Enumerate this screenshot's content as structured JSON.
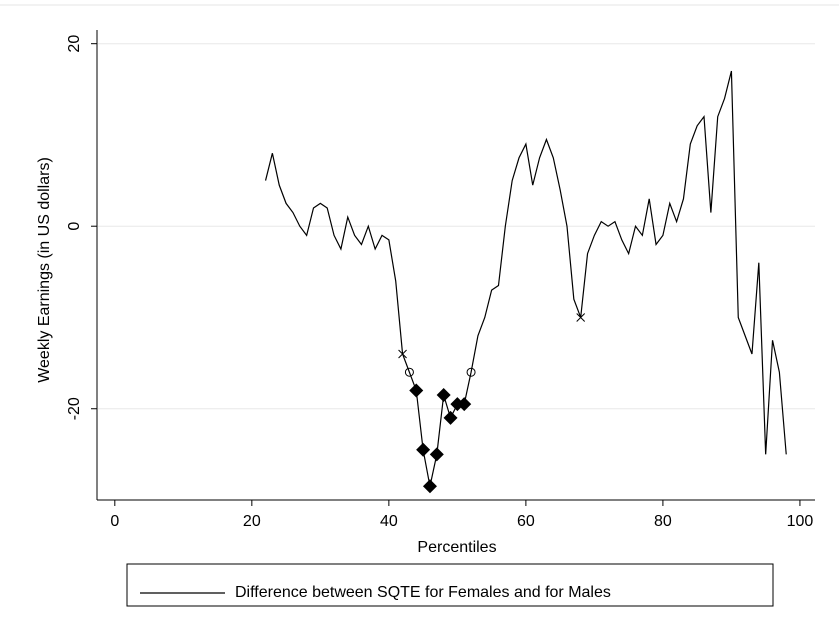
{
  "chart_data": {
    "type": "line",
    "xlabel": "Percentiles",
    "ylabel": "Weekly Earnings (in US dollars)",
    "xlim": [
      -2.6,
      102.2
    ],
    "ylim": [
      -30,
      21.5
    ],
    "xticks": [
      0,
      20,
      40,
      60,
      80,
      100
    ],
    "yticks": [
      -20,
      0,
      20
    ],
    "grid": true,
    "legend": "bottom",
    "x": [
      22,
      23,
      24,
      25,
      26,
      27,
      28,
      29,
      30,
      31,
      32,
      33,
      34,
      35,
      36,
      37,
      38,
      39,
      40,
      41,
      42,
      43,
      44,
      45,
      46,
      47,
      48,
      49,
      50,
      51,
      52,
      53,
      54,
      55,
      56,
      57,
      58,
      59,
      60,
      61,
      62,
      63,
      64,
      65,
      66,
      67,
      68,
      69,
      70,
      71,
      72,
      73,
      74,
      75,
      76,
      77,
      78,
      79,
      80,
      81,
      82,
      83,
      84,
      85,
      86,
      87,
      88,
      89,
      90,
      91,
      92,
      93,
      94,
      95,
      96,
      97,
      98
    ],
    "series": [
      {
        "name": "Difference between SQTE for Females and for Males",
        "color": "#000000",
        "values": [
          5,
          8,
          4.5,
          2.5,
          1.5,
          0,
          -1,
          2,
          2.5,
          2,
          -1,
          -2.5,
          1,
          -1,
          -2,
          0,
          -2.5,
          -1,
          -1.5,
          -6,
          -14,
          -16,
          -18,
          -24.5,
          -28.5,
          -25,
          -18.5,
          -21,
          -19.5,
          -19.5,
          -16,
          -12,
          -10,
          -7,
          -6.5,
          0,
          5,
          7.5,
          9,
          4.5,
          7.5,
          9.5,
          7.5,
          4,
          0,
          -8,
          -10,
          -3,
          -1,
          0.5,
          0,
          0.5,
          -1.5,
          -3,
          0,
          -1,
          3,
          -2,
          -1,
          2.5,
          0.5,
          3,
          9,
          11,
          12,
          1.5,
          12,
          14,
          17,
          -10,
          -12,
          -14,
          -4,
          -25,
          -12.5,
          -16,
          -25
        ],
        "markers": [
          null,
          null,
          null,
          null,
          null,
          null,
          null,
          null,
          null,
          null,
          null,
          null,
          null,
          null,
          null,
          null,
          null,
          null,
          null,
          null,
          "x",
          "circle",
          "diamond",
          "diamond",
          "diamond",
          "diamond",
          "diamond",
          "diamond",
          "diamond",
          "diamond",
          "circle",
          null,
          null,
          null,
          null,
          null,
          null,
          null,
          null,
          null,
          null,
          null,
          null,
          null,
          null,
          null,
          "x",
          null,
          null,
          null,
          null,
          null,
          null,
          null,
          null,
          null,
          null,
          null,
          null,
          null,
          null,
          null,
          null,
          null,
          null,
          null,
          null,
          null,
          null,
          null,
          null,
          null,
          null,
          null,
          null,
          null,
          null
        ]
      }
    ]
  }
}
